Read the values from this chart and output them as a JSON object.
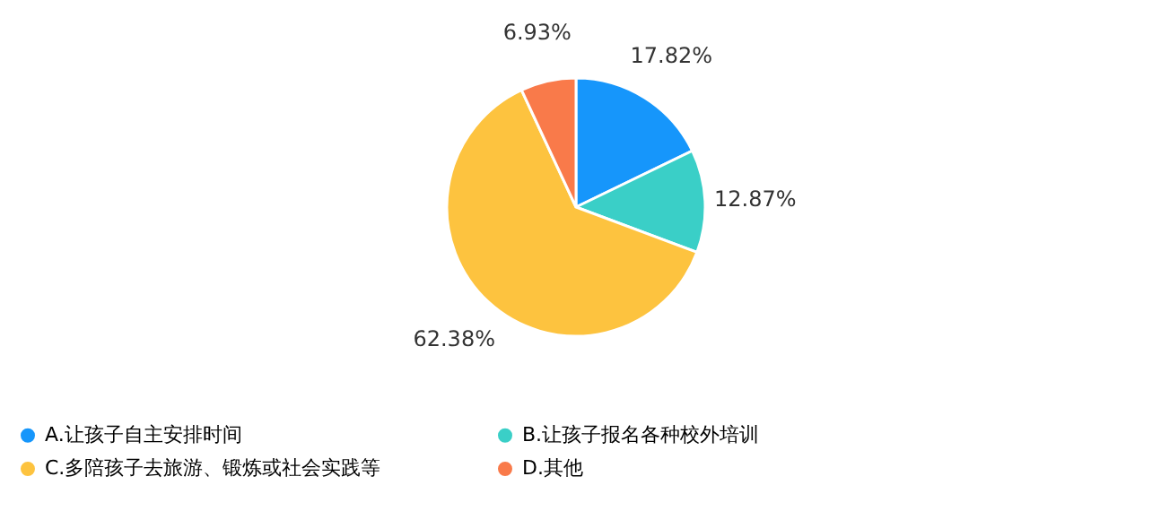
{
  "chart_data": {
    "type": "pie",
    "categories": [
      "A.让孩子自主安排时间",
      "B.让孩子报名各种校外培训",
      "C.多陪孩子去旅游、锻炼或社会实践等",
      "D.其他"
    ],
    "values": [
      17.82,
      12.87,
      62.38,
      6.93
    ],
    "colors": [
      "#1696fb",
      "#3acfc7",
      "#fdc33f",
      "#f97a4a"
    ],
    "value_labels": [
      "17.82%",
      "12.87%",
      "62.38%",
      "6.93%"
    ],
    "legend": "bottom"
  }
}
